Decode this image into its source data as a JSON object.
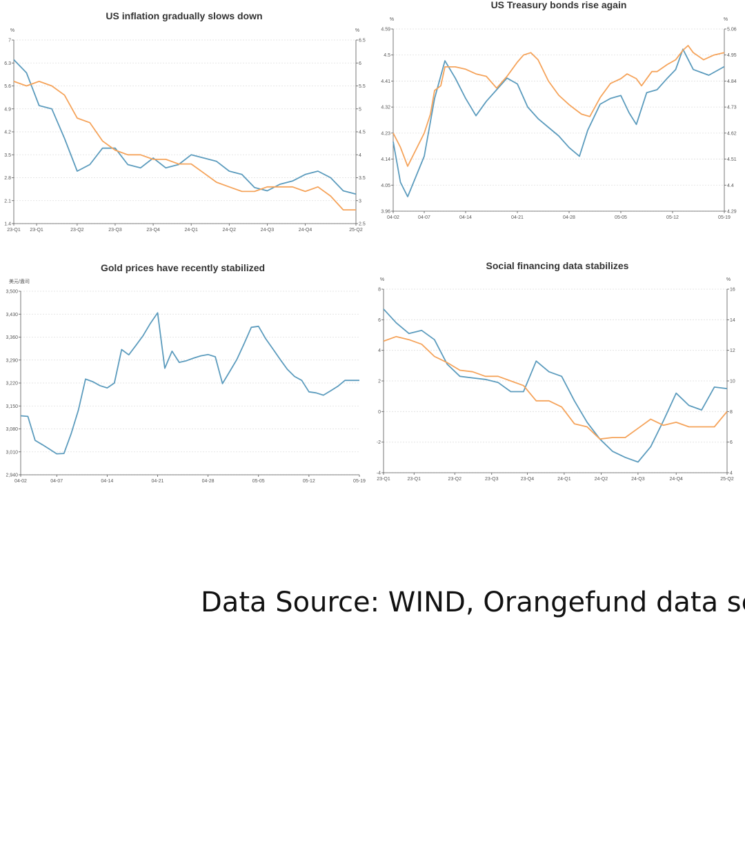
{
  "colors": {
    "blue": "#5b9bbd",
    "orange": "#f5a35a"
  },
  "chart_data": [
    {
      "type": "line",
      "title": "US inflation gradually slows down",
      "left_unit": "%",
      "right_unit": "%",
      "ylim_left": [
        1.4,
        7
      ],
      "yticks_left": [
        "1.4",
        "2.1",
        "2.8",
        "3.5",
        "4.2",
        "4.9",
        "5.6",
        "6.3",
        "7"
      ],
      "ylim_right": [
        2.5,
        6.5
      ],
      "yticks_right": [
        "2.5",
        "3",
        "3.5",
        "4",
        "4.5",
        "5",
        "5.5",
        "6",
        "6.5"
      ],
      "x_tick_labels": [
        "23-Q1",
        "23-Q1",
        "23-Q2",
        "23-Q3",
        "23-Q4",
        "24-Q1",
        "24-Q2",
        "24-Q3",
        "24-Q4",
        "25-Q2"
      ],
      "x_tick_positions": [
        0,
        1.8,
        5,
        8,
        11,
        14,
        17,
        20,
        23,
        27
      ],
      "x_max": 27,
      "series": [
        {
          "axis": "left",
          "color": "blue",
          "x": [
            0,
            1,
            2,
            3,
            4,
            5,
            6,
            7,
            8,
            9,
            10,
            11,
            12,
            13,
            14,
            15,
            16,
            17,
            18,
            19,
            20,
            21,
            22,
            23,
            24,
            25,
            26,
            27
          ],
          "values": [
            6.4,
            6.0,
            5.0,
            4.9,
            4.0,
            3.0,
            3.2,
            3.7,
            3.7,
            3.2,
            3.1,
            3.4,
            3.1,
            3.2,
            3.5,
            3.4,
            3.3,
            3.0,
            2.9,
            2.5,
            2.4,
            2.6,
            2.7,
            2.9,
            3.0,
            2.8,
            2.4,
            2.3
          ]
        },
        {
          "axis": "right",
          "color": "orange",
          "x": [
            0,
            1,
            2,
            3,
            4,
            5,
            6,
            7,
            8,
            9,
            10,
            11,
            12,
            13,
            14,
            15,
            16,
            17,
            18,
            19,
            20,
            21,
            22,
            23,
            24,
            25,
            26,
            27
          ],
          "values": [
            5.6,
            5.5,
            5.6,
            5.5,
            5.3,
            4.8,
            4.7,
            4.3,
            4.1,
            4.0,
            4.0,
            3.9,
            3.9,
            3.8,
            3.8,
            3.6,
            3.4,
            3.3,
            3.2,
            3.2,
            3.3,
            3.3,
            3.3,
            3.2,
            3.3,
            3.1,
            2.8,
            2.8
          ]
        }
      ]
    },
    {
      "type": "line",
      "title": "US Treasury bonds rise again",
      "left_unit": "%",
      "right_unit": "%",
      "ylim_left": [
        3.96,
        4.59
      ],
      "yticks_left": [
        "3.96",
        "4.05",
        "4.14",
        "4.23",
        "4.32",
        "4.41",
        "4.5",
        "4.59"
      ],
      "ylim_right": [
        4.29,
        5.06
      ],
      "yticks_right": [
        "4.29",
        "4.4",
        "4.51",
        "4.62",
        "4.73",
        "4.84",
        "4.95",
        "5.06"
      ],
      "x_tick_labels": [
        "04-02",
        "04-07",
        "04-14",
        "04-21",
        "04-28",
        "05-05",
        "05-12",
        "05-19"
      ],
      "x_tick_positions": [
        0,
        3,
        7,
        12,
        17,
        22,
        27,
        32
      ],
      "x_max": 32,
      "series": [
        {
          "axis": "left",
          "color": "blue",
          "x": [
            0,
            0.7,
            1.4,
            3,
            4,
            5,
            6,
            7,
            8,
            9,
            10,
            11,
            12,
            13,
            14,
            15,
            16,
            17,
            18,
            18.8,
            20,
            21,
            22,
            22.8,
            23.5,
            24.5,
            25.5,
            26.5,
            27.3,
            28,
            29,
            30.5,
            32
          ],
          "values": [
            4.2,
            4.06,
            4.01,
            4.15,
            4.35,
            4.48,
            4.42,
            4.35,
            4.29,
            4.34,
            4.38,
            4.42,
            4.4,
            4.32,
            4.28,
            4.25,
            4.22,
            4.18,
            4.15,
            4.24,
            4.33,
            4.35,
            4.36,
            4.3,
            4.26,
            4.37,
            4.38,
            4.42,
            4.45,
            4.52,
            4.45,
            4.43,
            4.46
          ]
        },
        {
          "axis": "right",
          "color": "orange",
          "x": [
            0,
            0.7,
            1.4,
            3,
            3.6,
            4,
            4.6,
            5,
            6,
            7,
            8,
            9,
            10,
            11,
            11.5,
            12,
            12.6,
            13.3,
            14,
            15,
            16,
            17,
            17.6,
            18.2,
            19,
            20,
            21,
            22,
            22.6,
            23.5,
            24,
            25,
            25.5,
            26.5,
            27.3,
            28,
            28.5,
            29,
            30,
            31,
            32
          ],
          "values": [
            4.62,
            4.56,
            4.48,
            4.62,
            4.7,
            4.8,
            4.82,
            4.9,
            4.9,
            4.89,
            4.87,
            4.86,
            4.81,
            4.86,
            4.89,
            4.92,
            4.95,
            4.96,
            4.93,
            4.84,
            4.78,
            4.74,
            4.72,
            4.7,
            4.69,
            4.77,
            4.83,
            4.85,
            4.87,
            4.85,
            4.82,
            4.88,
            4.88,
            4.91,
            4.93,
            4.97,
            4.99,
            4.96,
            4.93,
            4.95,
            4.96
          ]
        }
      ]
    },
    {
      "type": "line",
      "title": "Gold prices have recently stabilized",
      "left_unit": "美元/盎司",
      "ylim_left": [
        2940,
        3500
      ],
      "yticks_left": [
        "2,940",
        "3,010",
        "3,080",
        "3,150",
        "3,220",
        "3,290",
        "3,360",
        "3,430",
        "3,500"
      ],
      "x_tick_labels": [
        "04-02",
        "04-07",
        "04-14",
        "04-21",
        "04-28",
        "05-05",
        "05-12",
        "05-19"
      ],
      "x_tick_positions": [
        0,
        5,
        12,
        19,
        26,
        33,
        40,
        47
      ],
      "x_max": 47,
      "series": [
        {
          "axis": "left",
          "color": "blue",
          "x": [
            0,
            1,
            2,
            3,
            4,
            5,
            6,
            7,
            8,
            9,
            10,
            11,
            12,
            13,
            14,
            15,
            16,
            17,
            18,
            19,
            20,
            21,
            22,
            23,
            24,
            25,
            26,
            27,
            28,
            29,
            30,
            31,
            32,
            33,
            34,
            35,
            36,
            37,
            38,
            39,
            40,
            41,
            42,
            43,
            44,
            45,
            46,
            47
          ],
          "values": [
            3120,
            3118,
            3045,
            3032,
            3018,
            3004,
            3005,
            3065,
            3137,
            3232,
            3224,
            3212,
            3205,
            3220,
            3322,
            3306,
            3335,
            3365,
            3402,
            3434,
            3265,
            3317,
            3283,
            3288,
            3296,
            3303,
            3307,
            3300,
            3218,
            3255,
            3292,
            3340,
            3390,
            3393,
            3355,
            3324,
            3292,
            3262,
            3240,
            3228,
            3193,
            3190,
            3183,
            3196,
            3210,
            3228,
            3228,
            3228
          ]
        }
      ]
    },
    {
      "type": "line",
      "title": "Social financing data stabilizes",
      "left_unit": "%",
      "right_unit": "%",
      "ylim_left": [
        -4,
        8
      ],
      "yticks_left": [
        "-4",
        "-2",
        "0",
        "2",
        "4",
        "6",
        "8"
      ],
      "ylim_right": [
        4,
        16
      ],
      "yticks_right": [
        "4",
        "6",
        "8",
        "10",
        "12",
        "14",
        "16"
      ],
      "x_tick_labels": [
        "23-Q1",
        "23-Q1",
        "23-Q2",
        "23-Q3",
        "23-Q4",
        "24-Q1",
        "24-Q2",
        "24-Q3",
        "24-Q4",
        "25-Q2"
      ],
      "x_tick_positions": [
        0,
        2.4,
        5.6,
        8.5,
        11.3,
        14.2,
        17.1,
        20,
        23,
        27
      ],
      "x_max": 27,
      "series": [
        {
          "axis": "left",
          "color": "blue",
          "x": [
            0,
            1,
            2,
            3,
            4,
            5,
            6,
            7,
            8,
            9,
            10,
            11,
            12,
            13,
            14,
            15,
            16,
            17,
            18,
            19,
            20,
            21,
            22,
            23,
            24,
            25,
            26,
            27
          ],
          "values": [
            6.7,
            5.8,
            5.1,
            5.3,
            4.7,
            3.1,
            2.3,
            2.2,
            2.1,
            1.9,
            1.3,
            1.3,
            3.3,
            2.6,
            2.3,
            0.7,
            -0.7,
            -1.8,
            -2.6,
            -3.0,
            -3.3,
            -2.3,
            -0.6,
            1.2,
            0.4,
            0.1,
            1.6,
            1.5
          ]
        },
        {
          "axis": "right",
          "color": "orange",
          "x": [
            0,
            1,
            2,
            3,
            4,
            5,
            6,
            7,
            8,
            9,
            10,
            11,
            12,
            13,
            14,
            15,
            16,
            17,
            18,
            19,
            20,
            21,
            22,
            23,
            24,
            25,
            26,
            27
          ],
          "values": [
            12.6,
            12.9,
            12.7,
            12.4,
            11.6,
            11.2,
            10.7,
            10.6,
            10.3,
            10.3,
            10.0,
            9.7,
            8.7,
            8.7,
            8.3,
            7.2,
            7.0,
            6.2,
            6.3,
            6.3,
            6.9,
            7.5,
            7.1,
            7.3,
            7.0,
            7.0,
            7.0,
            8.0
          ]
        }
      ]
    }
  ],
  "source": "Data Source: WIND, Orangefund data sea"
}
